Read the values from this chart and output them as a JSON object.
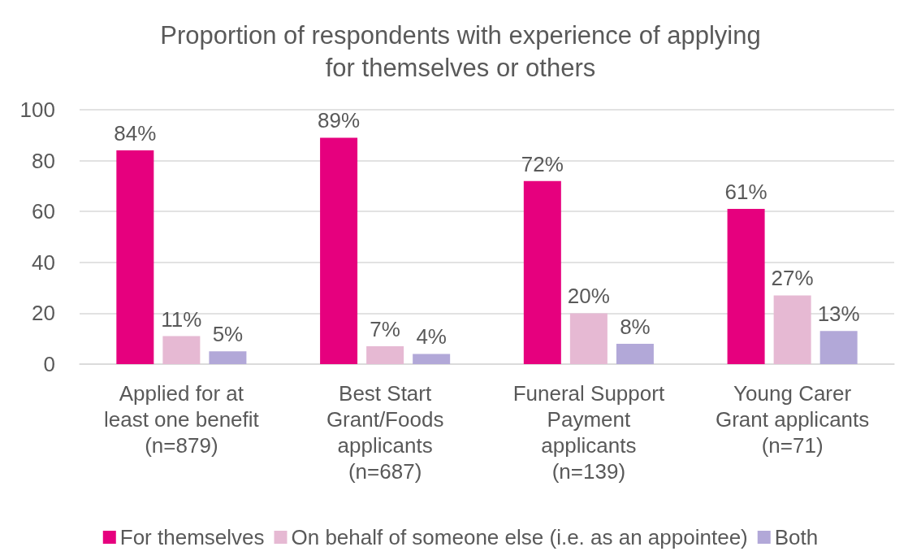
{
  "chart_data": {
    "type": "bar",
    "title": "Proportion of respondents with experience of applying\nfor themselves or others",
    "categories": [
      "Applied for at\nleast one benefit\n(n=879)",
      "Best Start\nGrant/Foods\napplicants\n(n=687)",
      "Funeral Support\nPayment\napplicants\n(n=139)",
      "Young Carer\nGrant applicants\n(n=71)"
    ],
    "series": [
      {
        "name": "For themselves",
        "color": "#e6007e",
        "values": [
          84,
          89,
          72,
          61
        ],
        "value_labels": [
          "84%",
          "89%",
          "72%",
          "61%"
        ]
      },
      {
        "name": "On behalf of someone else (i.e. as an appointee)",
        "color": "#e6b9d3",
        "values": [
          11,
          7,
          20,
          27
        ],
        "value_labels": [
          "11%",
          "7%",
          "20%",
          "27%"
        ]
      },
      {
        "name": "Both",
        "color": "#b2a8d8",
        "values": [
          5,
          4,
          8,
          13
        ],
        "value_labels": [
          "5%",
          "4%",
          "8%",
          "13%"
        ]
      }
    ],
    "ylim": [
      0,
      100
    ],
    "yticks": [
      0,
      20,
      40,
      60,
      80,
      100
    ],
    "grid": "y",
    "legend": "bottom"
  }
}
